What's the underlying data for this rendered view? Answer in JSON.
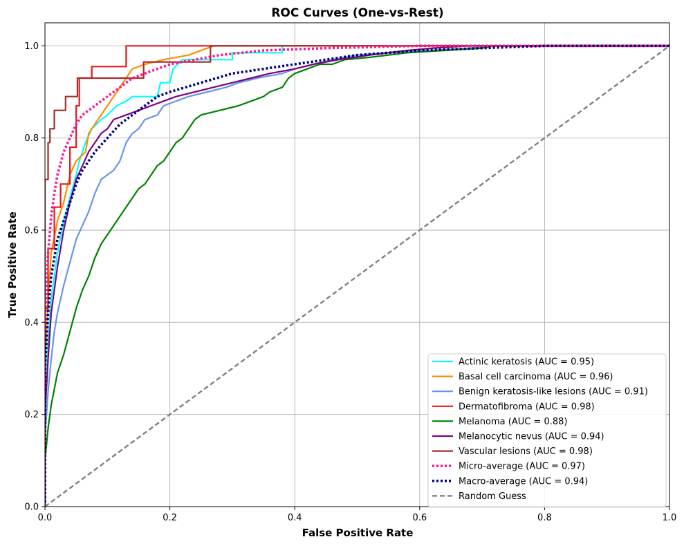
{
  "chart_data": {
    "type": "line",
    "title": "ROC Curves (One-vs-Rest)",
    "xlabel": "False Positive Rate",
    "ylabel": "True Positive Rate",
    "xlim": [
      0.0,
      1.0
    ],
    "ylim": [
      0.0,
      1.05
    ],
    "xticks": [
      "0.0",
      "0.2",
      "0.4",
      "0.6",
      "0.8",
      "1.0"
    ],
    "yticks": [
      "0.0",
      "0.2",
      "0.4",
      "0.6",
      "0.8",
      "1.0"
    ],
    "grid": true,
    "legend_position": "lower-right",
    "series": [
      {
        "name": "Actinic keratosis (AUC = 0.95)",
        "color": "#00ffff",
        "style": "solid",
        "points": [
          [
            0,
            0
          ],
          [
            0,
            0.2
          ],
          [
            0.005,
            0.36
          ],
          [
            0.01,
            0.45
          ],
          [
            0.015,
            0.5
          ],
          [
            0.02,
            0.55
          ],
          [
            0.03,
            0.62
          ],
          [
            0.04,
            0.67
          ],
          [
            0.05,
            0.72
          ],
          [
            0.055,
            0.75
          ],
          [
            0.065,
            0.79
          ],
          [
            0.075,
            0.82
          ],
          [
            0.09,
            0.84
          ],
          [
            0.1,
            0.85
          ],
          [
            0.115,
            0.87
          ],
          [
            0.13,
            0.88
          ],
          [
            0.14,
            0.89
          ],
          [
            0.18,
            0.89
          ],
          [
            0.185,
            0.92
          ],
          [
            0.2,
            0.92
          ],
          [
            0.205,
            0.95
          ],
          [
            0.22,
            0.97
          ],
          [
            0.3,
            0.97
          ],
          [
            0.3,
            0.985
          ],
          [
            0.38,
            0.985
          ],
          [
            0.38,
            1.0
          ],
          [
            1,
            1
          ]
        ]
      },
      {
        "name": "Basal cell carcinoma (AUC = 0.96)",
        "color": "#ff8c00",
        "style": "solid",
        "points": [
          [
            0,
            0
          ],
          [
            0,
            0.3
          ],
          [
            0.005,
            0.45
          ],
          [
            0.01,
            0.55
          ],
          [
            0.02,
            0.62
          ],
          [
            0.03,
            0.66
          ],
          [
            0.04,
            0.72
          ],
          [
            0.05,
            0.75
          ],
          [
            0.065,
            0.77
          ],
          [
            0.07,
            0.81
          ],
          [
            0.08,
            0.83
          ],
          [
            0.09,
            0.85
          ],
          [
            0.1,
            0.87
          ],
          [
            0.11,
            0.89
          ],
          [
            0.12,
            0.91
          ],
          [
            0.13,
            0.93
          ],
          [
            0.14,
            0.95
          ],
          [
            0.16,
            0.96
          ],
          [
            0.19,
            0.97
          ],
          [
            0.23,
            0.98
          ],
          [
            0.26,
            0.995
          ],
          [
            0.27,
            1.0
          ],
          [
            1,
            1
          ]
        ]
      },
      {
        "name": "Benign keratosis-like lesions (AUC = 0.91)",
        "color": "#6495ed",
        "style": "solid",
        "points": [
          [
            0,
            0
          ],
          [
            0,
            0.15
          ],
          [
            0.005,
            0.25
          ],
          [
            0.01,
            0.32
          ],
          [
            0.015,
            0.38
          ],
          [
            0.02,
            0.42
          ],
          [
            0.03,
            0.48
          ],
          [
            0.04,
            0.53
          ],
          [
            0.05,
            0.58
          ],
          [
            0.06,
            0.61
          ],
          [
            0.07,
            0.64
          ],
          [
            0.08,
            0.68
          ],
          [
            0.09,
            0.71
          ],
          [
            0.1,
            0.72
          ],
          [
            0.11,
            0.73
          ],
          [
            0.12,
            0.75
          ],
          [
            0.13,
            0.79
          ],
          [
            0.14,
            0.81
          ],
          [
            0.15,
            0.82
          ],
          [
            0.16,
            0.84
          ],
          [
            0.18,
            0.85
          ],
          [
            0.19,
            0.87
          ],
          [
            0.21,
            0.88
          ],
          [
            0.23,
            0.89
          ],
          [
            0.26,
            0.9
          ],
          [
            0.29,
            0.91
          ],
          [
            0.31,
            0.92
          ],
          [
            0.34,
            0.93
          ],
          [
            0.38,
            0.94
          ],
          [
            0.4,
            0.95
          ],
          [
            0.43,
            0.96
          ],
          [
            0.46,
            0.97
          ],
          [
            0.5,
            0.98
          ],
          [
            0.55,
            0.985
          ],
          [
            0.62,
            0.99
          ],
          [
            0.68,
            0.995
          ],
          [
            0.72,
            1.0
          ],
          [
            1,
            1
          ]
        ]
      },
      {
        "name": "Dermatofibroma (AUC = 0.98)",
        "color": "#e31a1c",
        "style": "solid",
        "points": [
          [
            0,
            0
          ],
          [
            0,
            0.43
          ],
          [
            0.005,
            0.43
          ],
          [
            0.005,
            0.56
          ],
          [
            0.015,
            0.56
          ],
          [
            0.015,
            0.65
          ],
          [
            0.025,
            0.65
          ],
          [
            0.025,
            0.7
          ],
          [
            0.04,
            0.7
          ],
          [
            0.04,
            0.78
          ],
          [
            0.05,
            0.78
          ],
          [
            0.05,
            0.87
          ],
          [
            0.055,
            0.87
          ],
          [
            0.055,
            0.93
          ],
          [
            0.075,
            0.93
          ],
          [
            0.075,
            0.955
          ],
          [
            0.13,
            0.955
          ],
          [
            0.13,
            1.0
          ],
          [
            1,
            1
          ]
        ]
      },
      {
        "name": "Melanoma (AUC = 0.88)",
        "color": "#008000",
        "style": "solid",
        "points": [
          [
            0,
            0
          ],
          [
            0,
            0.1
          ],
          [
            0.005,
            0.17
          ],
          [
            0.01,
            0.22
          ],
          [
            0.02,
            0.29
          ],
          [
            0.03,
            0.33
          ],
          [
            0.04,
            0.38
          ],
          [
            0.05,
            0.43
          ],
          [
            0.06,
            0.47
          ],
          [
            0.07,
            0.5
          ],
          [
            0.08,
            0.54
          ],
          [
            0.09,
            0.57
          ],
          [
            0.1,
            0.59
          ],
          [
            0.11,
            0.61
          ],
          [
            0.12,
            0.63
          ],
          [
            0.13,
            0.65
          ],
          [
            0.14,
            0.67
          ],
          [
            0.15,
            0.69
          ],
          [
            0.16,
            0.7
          ],
          [
            0.17,
            0.72
          ],
          [
            0.18,
            0.74
          ],
          [
            0.19,
            0.75
          ],
          [
            0.2,
            0.77
          ],
          [
            0.21,
            0.79
          ],
          [
            0.22,
            0.8
          ],
          [
            0.23,
            0.82
          ],
          [
            0.24,
            0.84
          ],
          [
            0.25,
            0.85
          ],
          [
            0.28,
            0.86
          ],
          [
            0.31,
            0.87
          ],
          [
            0.33,
            0.88
          ],
          [
            0.35,
            0.89
          ],
          [
            0.36,
            0.9
          ],
          [
            0.38,
            0.91
          ],
          [
            0.39,
            0.93
          ],
          [
            0.4,
            0.94
          ],
          [
            0.42,
            0.95
          ],
          [
            0.44,
            0.96
          ],
          [
            0.46,
            0.96
          ],
          [
            0.48,
            0.97
          ],
          [
            0.52,
            0.975
          ],
          [
            0.58,
            0.985
          ],
          [
            0.64,
            0.99
          ],
          [
            0.7,
            0.995
          ],
          [
            0.72,
            1.0
          ],
          [
            1,
            1
          ]
        ]
      },
      {
        "name": "Melanocytic nevus (AUC = 0.94)",
        "color": "#800080",
        "style": "solid",
        "points": [
          [
            0,
            0
          ],
          [
            0,
            0.2
          ],
          [
            0.005,
            0.32
          ],
          [
            0.01,
            0.42
          ],
          [
            0.02,
            0.52
          ],
          [
            0.03,
            0.6
          ],
          [
            0.04,
            0.66
          ],
          [
            0.05,
            0.71
          ],
          [
            0.06,
            0.74
          ],
          [
            0.07,
            0.77
          ],
          [
            0.08,
            0.79
          ],
          [
            0.09,
            0.81
          ],
          [
            0.1,
            0.82
          ],
          [
            0.11,
            0.84
          ],
          [
            0.13,
            0.85
          ],
          [
            0.15,
            0.86
          ],
          [
            0.17,
            0.87
          ],
          [
            0.19,
            0.88
          ],
          [
            0.21,
            0.89
          ],
          [
            0.24,
            0.9
          ],
          [
            0.27,
            0.91
          ],
          [
            0.3,
            0.92
          ],
          [
            0.33,
            0.93
          ],
          [
            0.36,
            0.94
          ],
          [
            0.4,
            0.95
          ],
          [
            0.43,
            0.96
          ],
          [
            0.47,
            0.97
          ],
          [
            0.52,
            0.98
          ],
          [
            0.58,
            0.99
          ],
          [
            0.62,
            0.995
          ],
          [
            0.68,
            1.0
          ],
          [
            1,
            1
          ]
        ]
      },
      {
        "name": "Vascular lesions (AUC = 0.98)",
        "color": "#a52a2a",
        "style": "solid",
        "points": [
          [
            0,
            0
          ],
          [
            0,
            0.71
          ],
          [
            0.005,
            0.71
          ],
          [
            0.005,
            0.79
          ],
          [
            0.008,
            0.79
          ],
          [
            0.008,
            0.82
          ],
          [
            0.015,
            0.82
          ],
          [
            0.015,
            0.86
          ],
          [
            0.033,
            0.86
          ],
          [
            0.033,
            0.89
          ],
          [
            0.052,
            0.89
          ],
          [
            0.052,
            0.93
          ],
          [
            0.158,
            0.93
          ],
          [
            0.158,
            0.965
          ],
          [
            0.265,
            0.965
          ],
          [
            0.265,
            1.0
          ],
          [
            1,
            1
          ]
        ]
      },
      {
        "name": "Micro-average (AUC = 0.97)",
        "color": "#ff1493",
        "style": "dotted",
        "points": [
          [
            0,
            0
          ],
          [
            0,
            0.4
          ],
          [
            0.005,
            0.55
          ],
          [
            0.01,
            0.63
          ],
          [
            0.015,
            0.68
          ],
          [
            0.02,
            0.72
          ],
          [
            0.03,
            0.77
          ],
          [
            0.04,
            0.8
          ],
          [
            0.05,
            0.83
          ],
          [
            0.06,
            0.85
          ],
          [
            0.07,
            0.86
          ],
          [
            0.08,
            0.87
          ],
          [
            0.1,
            0.89
          ],
          [
            0.12,
            0.91
          ],
          [
            0.14,
            0.93
          ],
          [
            0.16,
            0.94
          ],
          [
            0.18,
            0.95
          ],
          [
            0.2,
            0.96
          ],
          [
            0.24,
            0.97
          ],
          [
            0.28,
            0.98
          ],
          [
            0.35,
            0.99
          ],
          [
            0.45,
            0.995
          ],
          [
            0.6,
            1.0
          ],
          [
            1,
            1
          ]
        ]
      },
      {
        "name": "Macro-average (AUC = 0.94)",
        "color": "#000080",
        "style": "dotted",
        "points": [
          [
            0,
            0
          ],
          [
            0,
            0.3
          ],
          [
            0.005,
            0.42
          ],
          [
            0.01,
            0.5
          ],
          [
            0.02,
            0.58
          ],
          [
            0.03,
            0.62
          ],
          [
            0.04,
            0.66
          ],
          [
            0.05,
            0.7
          ],
          [
            0.06,
            0.73
          ],
          [
            0.07,
            0.75
          ],
          [
            0.08,
            0.77
          ],
          [
            0.1,
            0.8
          ],
          [
            0.12,
            0.83
          ],
          [
            0.14,
            0.85
          ],
          [
            0.16,
            0.87
          ],
          [
            0.18,
            0.89
          ],
          [
            0.2,
            0.9
          ],
          [
            0.25,
            0.92
          ],
          [
            0.3,
            0.94
          ],
          [
            0.35,
            0.95
          ],
          [
            0.4,
            0.96
          ],
          [
            0.45,
            0.97
          ],
          [
            0.5,
            0.98
          ],
          [
            0.6,
            0.99
          ],
          [
            0.7,
            0.995
          ],
          [
            0.8,
            1.0
          ],
          [
            1,
            1
          ]
        ]
      },
      {
        "name": "Random Guess",
        "color": "#808080",
        "style": "dashed",
        "points": [
          [
            0,
            0
          ],
          [
            1,
            1
          ]
        ]
      }
    ]
  }
}
